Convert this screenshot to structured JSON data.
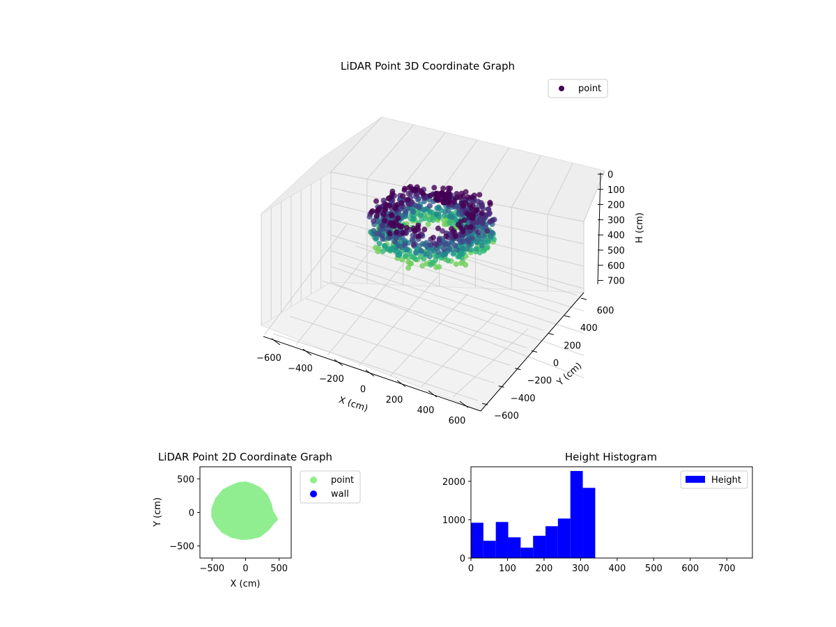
{
  "colors": {
    "lidar_viridis": "#440154",
    "wall": "#0000ff",
    "point_2d": "#90ee90",
    "hist_bar": "#0000ff",
    "pane": "#f2f2f2"
  },
  "chart_data": [
    {
      "type": "scatter",
      "projection": "3d",
      "title": "LiDAR Point 3D Coordinate Graph",
      "xlabel": "X (cm)",
      "ylabel": "Y (cm)",
      "zlabel": "H (cm)",
      "xticks": [
        "−600",
        "−400",
        "−200",
        "0",
        "200",
        "400",
        "600"
      ],
      "yticks": [
        "−600",
        "−400",
        "−200",
        "0",
        "200",
        "400",
        "600"
      ],
      "zticks": [
        "0",
        "100",
        "200",
        "300",
        "400",
        "500",
        "600",
        "700"
      ],
      "xlim": [
        -650,
        650
      ],
      "ylim": [
        -650,
        650
      ],
      "zlim": [
        750,
        0
      ],
      "z_inverted": true,
      "colormap": "viridis",
      "grid": true,
      "legend": {
        "placement": "upper-right",
        "entries": [
          "point"
        ]
      },
      "series": [
        {
          "name": "point",
          "description_of_shape": "dense ring of points, radius about 300-450 cm, heights 0-350 cm",
          "x_range": [
            -500,
            450
          ],
          "y_range": [
            -400,
            450
          ],
          "h_range": [
            0,
            350
          ]
        }
      ]
    },
    {
      "type": "scatter",
      "title": "LiDAR Point 2D Coordinate Graph",
      "xlabel": "X (cm)",
      "ylabel": "Y (cm)",
      "xticks": [
        "−500",
        "0",
        "500"
      ],
      "yticks": [
        "−500",
        "0",
        "500"
      ],
      "xlim": [
        -680,
        680
      ],
      "ylim": [
        -680,
        680
      ],
      "legend": {
        "placement": "right-outside",
        "entries": [
          "point",
          "wall"
        ]
      },
      "series": [
        {
          "name": "point",
          "color": "#90ee90",
          "outline": [
            [
              -480,
              50
            ],
            [
              -420,
              200
            ],
            [
              -320,
              320
            ],
            [
              -200,
              380
            ],
            [
              -100,
              420
            ],
            [
              0,
              430
            ],
            [
              100,
              400
            ],
            [
              200,
              350
            ],
            [
              300,
              250
            ],
            [
              360,
              120
            ],
            [
              380,
              20
            ],
            [
              450,
              -100
            ],
            [
              400,
              -150
            ],
            [
              320,
              -250
            ],
            [
              200,
              -340
            ],
            [
              80,
              -370
            ],
            [
              -50,
              -380
            ],
            [
              -200,
              -350
            ],
            [
              -330,
              -280
            ],
            [
              -420,
              -180
            ],
            [
              -480,
              -60
            ]
          ]
        },
        {
          "name": "wall",
          "color": "#0000ff",
          "x": [],
          "y": []
        }
      ]
    },
    {
      "type": "bar",
      "subtype": "histogram",
      "title": "Height Histogram",
      "xticks": [
        "0",
        "100",
        "200",
        "300",
        "400",
        "500",
        "600",
        "700"
      ],
      "yticks": [
        "0",
        "1000",
        "2000"
      ],
      "xlim": [
        0,
        770
      ],
      "ylim": [
        0,
        2380
      ],
      "legend": {
        "placement": "top-right",
        "entries": [
          "Height"
        ]
      },
      "series": [
        {
          "name": "Height",
          "bin_edges": [
            0,
            34,
            68,
            102,
            136,
            170,
            204,
            238,
            272,
            306,
            340
          ],
          "values": [
            920,
            450,
            940,
            540,
            270,
            580,
            830,
            1030,
            2270,
            1830
          ]
        }
      ]
    }
  ]
}
